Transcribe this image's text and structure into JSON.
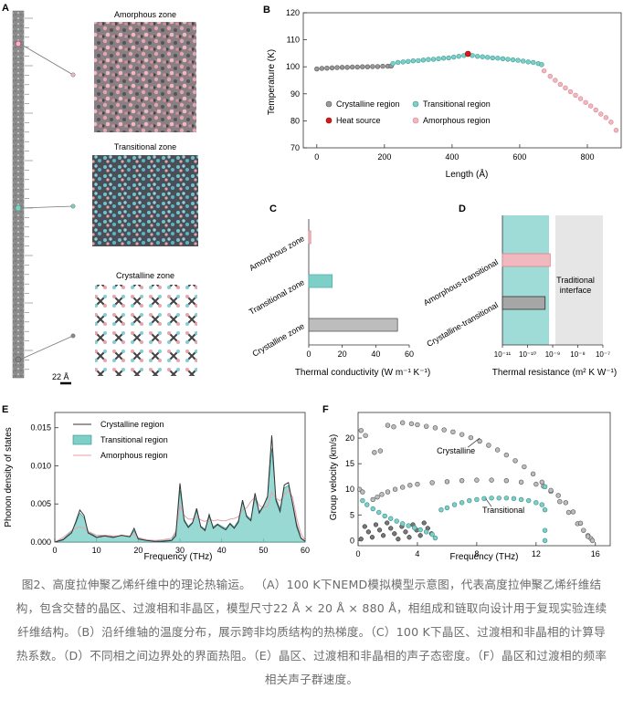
{
  "panel_letters": {
    "a": "A",
    "b": "B",
    "c": "C",
    "d": "D",
    "e": "E",
    "f": "F"
  },
  "panel_a": {
    "zones": [
      "Amorphous zone",
      "Transitional zone",
      "Crystalline zone"
    ],
    "scale_bar": "22 Å"
  },
  "colors": {
    "crystalline": "#9a9a9a",
    "transitional": "#7fcfc9",
    "amorphous": "#f2b8bf",
    "heat_source": "#d7191c",
    "traditional_bg": "#e6e6e6"
  },
  "chart_data": [
    {
      "panel": "B",
      "type": "scatter",
      "xlabel": "Length (Å)",
      "ylabel": "Temperature (K)",
      "xlim": [
        -40,
        900
      ],
      "ylim": [
        70,
        120
      ],
      "xticks": [
        0,
        200,
        400,
        600,
        800
      ],
      "yticks": [
        70,
        80,
        90,
        100,
        110,
        120
      ],
      "legend": "bottom-left",
      "series": [
        {
          "name": "Crystalline region",
          "x": [
            0,
            15,
            30,
            45,
            60,
            75,
            90,
            105,
            120,
            135,
            150,
            165,
            180,
            195,
            210,
            220
          ],
          "y": [
            99.2,
            99.4,
            99.5,
            99.6,
            99.7,
            99.8,
            99.8,
            99.9,
            99.9,
            100.0,
            100.0,
            100.1,
            100.1,
            100.2,
            100.2,
            100.3
          ]
        },
        {
          "name": "Transitional region",
          "x": [
            225,
            240,
            255,
            270,
            285,
            300,
            315,
            330,
            345,
            360,
            375,
            390,
            405,
            420,
            435,
            460,
            475,
            490,
            505,
            520,
            535,
            550,
            565,
            580,
            595,
            610,
            625,
            640,
            655,
            665
          ],
          "y": [
            101.2,
            101.6,
            101.8,
            102.0,
            102.2,
            102.3,
            102.5,
            102.7,
            102.8,
            103.0,
            103.2,
            103.3,
            103.6,
            103.9,
            104.2,
            104.2,
            103.9,
            103.7,
            103.5,
            103.3,
            103.2,
            103.0,
            102.8,
            102.6,
            102.4,
            102.1,
            101.8,
            101.6,
            101.2,
            100.8
          ]
        },
        {
          "name": "Heat source",
          "x": [
            447
          ],
          "y": [
            104.8
          ]
        },
        {
          "name": "Amorphous region",
          "x": [
            672,
            690,
            705,
            720,
            735,
            750,
            765,
            780,
            795,
            810,
            825,
            840,
            855,
            870,
            885
          ],
          "y": [
            98.5,
            96.5,
            95.0,
            93.5,
            92.2,
            90.8,
            89.5,
            88.2,
            86.8,
            85.5,
            84.0,
            82.5,
            81.2,
            79.5,
            76.5
          ]
        }
      ]
    },
    {
      "panel": "C",
      "type": "bar",
      "orientation": "horizontal",
      "categories": [
        "Amorphous zone",
        "Transitional zone",
        "Crystalline zone"
      ],
      "values": [
        1.2,
        14,
        53
      ],
      "xlabel": "Thermal conductivity (W m⁻¹ K⁻¹)",
      "xlim": [
        0,
        60
      ],
      "xticks": [
        0,
        20,
        40,
        60
      ]
    },
    {
      "panel": "D",
      "type": "bar",
      "orientation": "horizontal",
      "scale": "log",
      "categories": [
        "Amorphous-transitional",
        "Crystalline-transitional"
      ],
      "values": [
        8e-10,
        5e-10
      ],
      "xlabel": "Thermal resistance (m² K W⁻¹)",
      "xlim": [
        1e-11,
        1e-07
      ],
      "xtick_labels": [
        "10⁻¹¹",
        "10⁻¹⁰",
        "10⁻⁹",
        "10⁻⁸",
        "10⁻⁷"
      ],
      "annotation": "Traditional interface"
    },
    {
      "panel": "E",
      "type": "area",
      "xlabel": "Frequency (THz)",
      "ylabel": "Phonon density of states",
      "xlim": [
        0,
        60
      ],
      "ylim": [
        0,
        0.017
      ],
      "xticks": [
        0,
        10,
        20,
        30,
        40,
        50,
        60
      ],
      "ytick_labels": [
        "0.000",
        "0.005",
        "0.010",
        "0.015"
      ],
      "legend": "top-left",
      "x": [
        0,
        2,
        4,
        5,
        6,
        7,
        8,
        10,
        12,
        14,
        16,
        18,
        19,
        20,
        22,
        24,
        26,
        28,
        29,
        30,
        31,
        32,
        33,
        34,
        35,
        36,
        37,
        38,
        39,
        40,
        41,
        42,
        43,
        44,
        45,
        46,
        47,
        48,
        49,
        50,
        51,
        52,
        53,
        54,
        55,
        56,
        57,
        58,
        59,
        60
      ],
      "series": [
        {
          "name": "Crystalline region",
          "values": [
            0,
            0.0003,
            0.0012,
            0.0026,
            0.0042,
            0.0035,
            0.0012,
            0.0006,
            0.0008,
            0.0006,
            0.0009,
            0.0007,
            0.0018,
            0.0004,
            0.0002,
            0.0001,
            0.0001,
            0.0002,
            0.0008,
            0.0077,
            0.0028,
            0.0019,
            0.0025,
            0.0044,
            0.002,
            0.0015,
            0.0036,
            0.0018,
            0.0023,
            0.0019,
            0.0016,
            0.0024,
            0.0018,
            0.0026,
            0.0055,
            0.0033,
            0.0028,
            0.0064,
            0.0038,
            0.0047,
            0.006,
            0.014,
            0.0055,
            0.004,
            0.0075,
            0.0078,
            0.005,
            0.002,
            0.0005,
            0.0001
          ]
        },
        {
          "name": "Transitional region",
          "values": [
            0,
            0.0004,
            0.0014,
            0.0024,
            0.0038,
            0.0032,
            0.0014,
            0.0007,
            0.0009,
            0.0007,
            0.0008,
            0.0007,
            0.0015,
            0.0005,
            0.0002,
            0.0001,
            0.0002,
            0.0003,
            0.0012,
            0.0068,
            0.003,
            0.0021,
            0.0026,
            0.0041,
            0.0021,
            0.0017,
            0.0033,
            0.002,
            0.0024,
            0.0021,
            0.0018,
            0.0025,
            0.002,
            0.0028,
            0.0052,
            0.0035,
            0.003,
            0.0058,
            0.004,
            0.0048,
            0.0058,
            0.0123,
            0.0058,
            0.0044,
            0.0071,
            0.0074,
            0.0052,
            0.0024,
            0.0006,
            0.0001
          ]
        },
        {
          "name": "Amorphous region",
          "values": [
            0,
            0.0006,
            0.0015,
            0.0018,
            0.002,
            0.0018,
            0.0014,
            0.0009,
            0.0009,
            0.0008,
            0.0008,
            0.0008,
            0.001,
            0.0006,
            0.0003,
            0.0002,
            0.0003,
            0.0005,
            0.0014,
            0.0048,
            0.0035,
            0.003,
            0.003,
            0.0033,
            0.0029,
            0.0027,
            0.003,
            0.0028,
            0.0029,
            0.0028,
            0.0028,
            0.003,
            0.0031,
            0.0033,
            0.0042,
            0.0045,
            0.0053,
            0.0059,
            0.0048,
            0.0045,
            0.0047,
            0.0065,
            0.0058,
            0.0054,
            0.0062,
            0.0068,
            0.0059,
            0.0031,
            0.0011,
            0.0002
          ]
        }
      ]
    },
    {
      "panel": "F",
      "type": "scatter",
      "xlabel": "Frequency (THz)",
      "ylabel": "Group velocity (km/s)",
      "xlim": [
        0,
        17
      ],
      "ylim": [
        -1,
        25
      ],
      "xticks": [
        0,
        4,
        8,
        12,
        16
      ],
      "yticks": [
        0,
        5,
        10,
        15,
        20
      ],
      "annotations": [
        "Crystalline",
        "Transitional"
      ],
      "series": [
        {
          "name": "Crystalline",
          "x": [
            0.2,
            0.5,
            1.1,
            1.5,
            2.0,
            2.4,
            3,
            3.6,
            4,
            4.6,
            5.2,
            5.8,
            6.4,
            7,
            7.6,
            8.2,
            8.8,
            9.4,
            10,
            10.6,
            11.2,
            11.8,
            12.4,
            13,
            13.6,
            14.2,
            14.8,
            15.2,
            15.5,
            15.7,
            15.8,
            0.1,
            0.3,
            1.0,
            1.3,
            1.6,
            2.0,
            2.5,
            3,
            3.5,
            4,
            5,
            6,
            7,
            8,
            9,
            10,
            11,
            12,
            12.5,
            13,
            13.5,
            14,
            14.5,
            15,
            15.5
          ],
          "y": [
            21.5,
            20.5,
            17.2,
            17.5,
            22.5,
            22.2,
            23,
            22.8,
            22.6,
            22.3,
            22.0,
            21.6,
            21.2,
            20.7,
            20.1,
            19.4,
            18.6,
            17.7,
            16.7,
            15.6,
            14.4,
            13.0,
            11.4,
            9.6,
            7.6,
            5.5,
            3.3,
            2.0,
            1.0,
            0.4,
            0.0,
            10.0,
            9.5,
            8.0,
            8.5,
            9.0,
            9.5,
            10.0,
            10.4,
            10.8,
            11.0,
            11.3,
            11.5,
            11.7,
            11.8,
            11.8,
            11.7,
            11.4,
            11.0,
            10.6,
            9.8,
            8.8,
            7.4,
            5.6,
            3.4,
            0.8
          ]
        },
        {
          "name": "Transitional",
          "x": [
            0.3,
            0.6,
            1.0,
            1.4,
            1.8,
            2.2,
            2.6,
            3.0,
            3.4,
            3.8,
            4.2,
            4.6,
            5.0,
            5.2,
            5.6,
            6,
            6.5,
            7,
            7.5,
            8,
            8.5,
            9,
            9.5,
            10,
            10.5,
            11,
            11.5,
            12,
            12.4,
            12.6,
            12.6,
            12.6,
            12.6
          ],
          "y": [
            7.8,
            7.0,
            6.2,
            5.5,
            4.8,
            4.3,
            3.8,
            3.3,
            2.9,
            2.5,
            2.1,
            1.7,
            1.2,
            0.5,
            6.0,
            6.4,
            7.0,
            7.4,
            7.8,
            8.0,
            8.2,
            8.3,
            8.3,
            8.3,
            8.2,
            8.0,
            7.8,
            7.4,
            7.0,
            10.5,
            6.0,
            2.0,
            0.0
          ]
        }
      ]
    }
  ],
  "caption": "图2、高度拉伸聚乙烯纤维中的理论热输运。 （A）100 K下NEMD模拟模型示意图，代表高度拉伸聚乙烯纤维结构，包含交替的晶区、过渡相和非晶区，模型尺寸22 Å × 20 Å × 880 Å，相组成和链取向设计用于复现实验连续纤维结构。（B）沿纤维轴的温度分布，展示跨非均质结构的热梯度。（C）100 K下晶区、过渡相和非晶相的计算导热系数。（D）不同相之间边界处的界面热阻。（E）晶区、过渡相和非晶相的声子态密度。（F）晶区和过渡相的频率相关声子群速度。"
}
